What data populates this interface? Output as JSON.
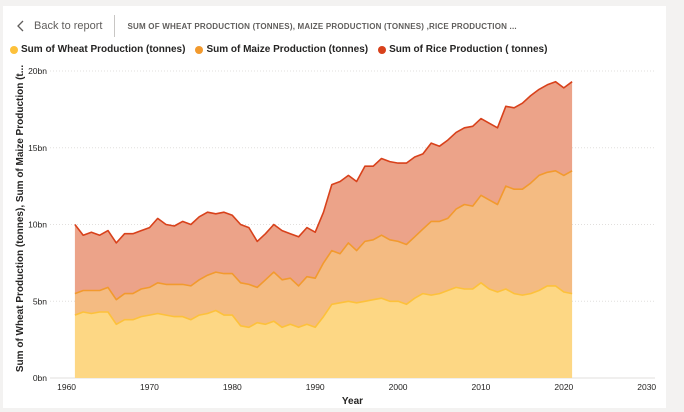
{
  "header": {
    "back_label": "Back to report",
    "title": "SUM OF WHEAT PRODUCTION (TONNES), MAIZE PRODUCTION (TONNES) ,RICE PRODUCTION ..."
  },
  "colors": {
    "wheat": "#fdc13b",
    "maize": "#f29a2e",
    "rice": "#d8411b",
    "wheat_fill": "#fdd784",
    "maize_fill": "#f4bb82",
    "rice_fill": "#eca389"
  },
  "chart_data": {
    "type": "area",
    "stacked": true,
    "title": "SUM OF WHEAT PRODUCTION (TONNES), MAIZE PRODUCTION (TONNES) ,RICE PRODUCTION ...",
    "xlabel": "Year",
    "ylabel": "Sum of Wheat Production (tonnes), Sum of Maize Production (t...",
    "xlim": [
      1958,
      2031
    ],
    "ylim": [
      0,
      20
    ],
    "y_unit": "bn",
    "x_ticks": [
      "1960",
      "1970",
      "1980",
      "1990",
      "2000",
      "2010",
      "2020",
      "2030"
    ],
    "x_tick_values": [
      1960,
      1970,
      1980,
      1990,
      2000,
      2010,
      2020,
      2030
    ],
    "y_ticks": [
      "0bn",
      "5bn",
      "10bn",
      "15bn",
      "20bn"
    ],
    "y_tick_values": [
      0,
      5,
      10,
      15,
      20
    ],
    "grid": true,
    "legend_position": "top-left",
    "x": [
      1961,
      1962,
      1963,
      1964,
      1965,
      1966,
      1967,
      1968,
      1969,
      1970,
      1971,
      1972,
      1973,
      1974,
      1975,
      1976,
      1977,
      1978,
      1979,
      1980,
      1981,
      1982,
      1983,
      1984,
      1985,
      1986,
      1987,
      1988,
      1989,
      1990,
      1991,
      1992,
      1993,
      1994,
      1995,
      1996,
      1997,
      1998,
      1999,
      2000,
      2001,
      2002,
      2003,
      2004,
      2005,
      2006,
      2007,
      2008,
      2009,
      2010,
      2011,
      2012,
      2013,
      2014,
      2015,
      2016,
      2017,
      2018,
      2019,
      2020,
      2021
    ],
    "series": [
      {
        "name": "Sum of Wheat Production (tonnes)",
        "cumulative": [
          4.1,
          4.3,
          4.2,
          4.3,
          4.3,
          3.5,
          3.8,
          3.8,
          4.0,
          4.1,
          4.2,
          4.1,
          4.0,
          4.0,
          3.8,
          4.1,
          4.2,
          4.4,
          4.1,
          4.1,
          3.4,
          3.3,
          3.6,
          3.5,
          3.7,
          3.3,
          3.5,
          3.3,
          3.5,
          3.3,
          4.0,
          4.8,
          4.9,
          5.0,
          4.9,
          5.0,
          5.1,
          5.2,
          5.0,
          5.0,
          4.8,
          5.2,
          5.5,
          5.4,
          5.5,
          5.7,
          5.9,
          5.8,
          5.8,
          6.2,
          5.8,
          5.6,
          5.8,
          5.5,
          5.4,
          5.5,
          5.7,
          6.0,
          6.0,
          5.6,
          5.5
        ]
      },
      {
        "name": "Sum of Maize Production (tonnes)",
        "cumulative": [
          5.5,
          5.7,
          5.7,
          5.7,
          5.9,
          5.1,
          5.5,
          5.5,
          5.8,
          5.9,
          6.2,
          6.1,
          6.1,
          6.1,
          6.0,
          6.4,
          6.7,
          6.9,
          6.8,
          6.8,
          6.2,
          6.1,
          5.9,
          6.4,
          6.9,
          6.4,
          6.5,
          6.0,
          6.6,
          6.5,
          7.5,
          8.3,
          8.1,
          8.8,
          8.3,
          8.9,
          9.0,
          9.3,
          9.0,
          8.9,
          8.7,
          9.2,
          9.7,
          10.2,
          10.2,
          10.4,
          11.0,
          11.3,
          11.2,
          11.9,
          11.6,
          11.3,
          12.5,
          12.3,
          12.3,
          12.7,
          13.2,
          13.4,
          13.5,
          13.2,
          13.5
        ]
      },
      {
        "name": "Sum of Rice  Production ( tonnes)",
        "cumulative": [
          10.0,
          9.3,
          9.5,
          9.3,
          9.6,
          8.8,
          9.4,
          9.4,
          9.6,
          9.8,
          10.4,
          10.0,
          9.9,
          10.2,
          10.0,
          10.5,
          10.8,
          10.7,
          10.8,
          10.6,
          10.0,
          9.8,
          8.9,
          9.4,
          10.0,
          9.6,
          9.4,
          9.2,
          9.8,
          9.5,
          10.8,
          12.6,
          12.8,
          13.2,
          12.8,
          13.8,
          13.8,
          14.3,
          14.1,
          14.0,
          14.0,
          14.4,
          14.6,
          15.3,
          15.1,
          15.5,
          16.0,
          16.3,
          16.4,
          16.9,
          16.6,
          16.3,
          17.7,
          17.6,
          17.9,
          18.4,
          18.8,
          19.1,
          19.3,
          18.9,
          19.3
        ]
      }
    ]
  }
}
